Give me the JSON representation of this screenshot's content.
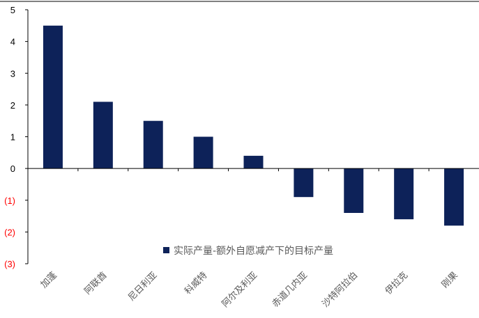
{
  "chart_data": {
    "type": "bar",
    "title": "",
    "xlabel": "",
    "ylabel": "",
    "categories": [
      "加蓬",
      "阿联酋",
      "尼日利亚",
      "科威特",
      "阿尔及利亚",
      "赤道几内亚",
      "沙特阿拉伯",
      "伊拉克",
      "刚果"
    ],
    "series": [
      {
        "name": "实际产量-额外自愿减产下的目标产量",
        "values": [
          4.5,
          2.1,
          1.5,
          1.0,
          0.4,
          -0.9,
          -1.4,
          -1.6,
          -1.8
        ]
      }
    ],
    "ylim": [
      -3,
      5
    ],
    "yticks": [
      5,
      4,
      3,
      2,
      1,
      0,
      -1,
      -2,
      -3
    ],
    "ytick_labels": [
      "5",
      "4",
      "3",
      "2",
      "1",
      "0",
      "(1)",
      "(2)",
      "(3)"
    ],
    "grid": false,
    "legend_position": "inside-lower-center",
    "colors": {
      "bar": "#0D2259",
      "axis": "#000000",
      "positive_tick": "#000000",
      "negative_tick": "#FF0000",
      "category_label": "#595959"
    }
  }
}
